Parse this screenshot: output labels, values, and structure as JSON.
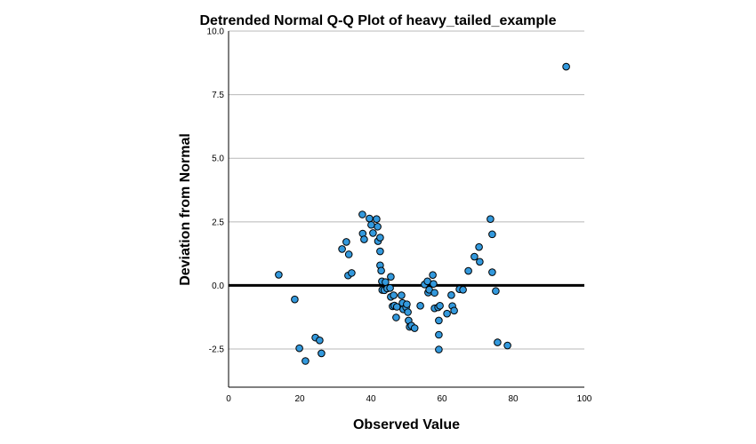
{
  "chart_data": {
    "type": "scatter",
    "title": "Detrended Normal Q-Q Plot of heavy_tailed_example",
    "xlabel": "Observed Value",
    "ylabel": "Deviation from Normal",
    "xlim": [
      0,
      100
    ],
    "ylim": [
      -4,
      10
    ],
    "xticks": [
      "0",
      "20",
      "40",
      "60",
      "80",
      "100"
    ],
    "xtick_values": [
      0,
      20,
      40,
      60,
      80,
      100
    ],
    "yticks": [
      "-2.5",
      "0.0",
      "2.5",
      "5.0",
      "7.5",
      "10.0"
    ],
    "ytick_values": [
      -2.5,
      0,
      2.5,
      5,
      7.5,
      10
    ],
    "grid": "horizontal",
    "reference_line_y": 0,
    "point_color": "#3399dd",
    "points": [
      {
        "x": 14.1,
        "y": 0.42
      },
      {
        "x": 18.6,
        "y": -0.55
      },
      {
        "x": 19.9,
        "y": -2.47
      },
      {
        "x": 21.6,
        "y": -2.97
      },
      {
        "x": 24.4,
        "y": -2.05
      },
      {
        "x": 25.6,
        "y": -2.16
      },
      {
        "x": 26.1,
        "y": -2.67
      },
      {
        "x": 31.9,
        "y": 1.43
      },
      {
        "x": 33.1,
        "y": 1.71
      },
      {
        "x": 33.6,
        "y": 0.39
      },
      {
        "x": 33.8,
        "y": 1.22
      },
      {
        "x": 34.6,
        "y": 0.49
      },
      {
        "x": 37.6,
        "y": 2.79
      },
      {
        "x": 37.7,
        "y": 2.04
      },
      {
        "x": 38.1,
        "y": 1.81
      },
      {
        "x": 39.6,
        "y": 2.63
      },
      {
        "x": 40.1,
        "y": 2.38
      },
      {
        "x": 40.6,
        "y": 2.06
      },
      {
        "x": 41.6,
        "y": 2.61
      },
      {
        "x": 41.9,
        "y": 2.31
      },
      {
        "x": 42.0,
        "y": 1.74
      },
      {
        "x": 42.6,
        "y": 1.88
      },
      {
        "x": 42.6,
        "y": 1.34
      },
      {
        "x": 42.6,
        "y": 0.79
      },
      {
        "x": 42.9,
        "y": 0.58
      },
      {
        "x": 43.1,
        "y": 0.16
      },
      {
        "x": 43.2,
        "y": -0.18
      },
      {
        "x": 43.8,
        "y": -0.19
      },
      {
        "x": 44.1,
        "y": 0.13
      },
      {
        "x": 44.6,
        "y": -0.12
      },
      {
        "x": 45.4,
        "y": -0.1
      },
      {
        "x": 45.6,
        "y": 0.34
      },
      {
        "x": 45.6,
        "y": -0.45
      },
      {
        "x": 46.1,
        "y": -0.82
      },
      {
        "x": 46.4,
        "y": -0.39
      },
      {
        "x": 46.6,
        "y": -0.79
      },
      {
        "x": 47.1,
        "y": -1.26
      },
      {
        "x": 47.3,
        "y": -0.84
      },
      {
        "x": 48.6,
        "y": -0.39
      },
      {
        "x": 48.9,
        "y": -0.69
      },
      {
        "x": 49.1,
        "y": -0.94
      },
      {
        "x": 49.9,
        "y": -0.86
      },
      {
        "x": 50.1,
        "y": -0.74
      },
      {
        "x": 50.4,
        "y": -1.05
      },
      {
        "x": 50.6,
        "y": -1.38
      },
      {
        "x": 50.9,
        "y": -1.63
      },
      {
        "x": 51.4,
        "y": -1.58
      },
      {
        "x": 52.3,
        "y": -1.68
      },
      {
        "x": 53.9,
        "y": -0.8
      },
      {
        "x": 55.1,
        "y": 0.04
      },
      {
        "x": 55.9,
        "y": 0.16
      },
      {
        "x": 56.1,
        "y": -0.28
      },
      {
        "x": 56.4,
        "y": -0.17
      },
      {
        "x": 57.4,
        "y": 0.41
      },
      {
        "x": 57.6,
        "y": 0.06
      },
      {
        "x": 57.9,
        "y": -0.29
      },
      {
        "x": 57.9,
        "y": -0.9
      },
      {
        "x": 58.9,
        "y": -0.86
      },
      {
        "x": 59.1,
        "y": -1.38
      },
      {
        "x": 59.1,
        "y": -1.94
      },
      {
        "x": 59.1,
        "y": -2.52
      },
      {
        "x": 59.4,
        "y": -0.8
      },
      {
        "x": 61.4,
        "y": -1.11
      },
      {
        "x": 62.6,
        "y": -0.38
      },
      {
        "x": 62.9,
        "y": -0.81
      },
      {
        "x": 63.4,
        "y": -0.99
      },
      {
        "x": 64.9,
        "y": -0.15
      },
      {
        "x": 65.9,
        "y": -0.17
      },
      {
        "x": 67.4,
        "y": 0.57
      },
      {
        "x": 69.1,
        "y": 1.13
      },
      {
        "x": 70.4,
        "y": 1.51
      },
      {
        "x": 70.6,
        "y": 0.93
      },
      {
        "x": 73.6,
        "y": 2.61
      },
      {
        "x": 74.1,
        "y": 2.01
      },
      {
        "x": 74.1,
        "y": 0.52
      },
      {
        "x": 75.1,
        "y": -0.22
      },
      {
        "x": 75.6,
        "y": -2.24
      },
      {
        "x": 78.4,
        "y": -2.36
      },
      {
        "x": 94.9,
        "y": 8.6
      }
    ]
  }
}
